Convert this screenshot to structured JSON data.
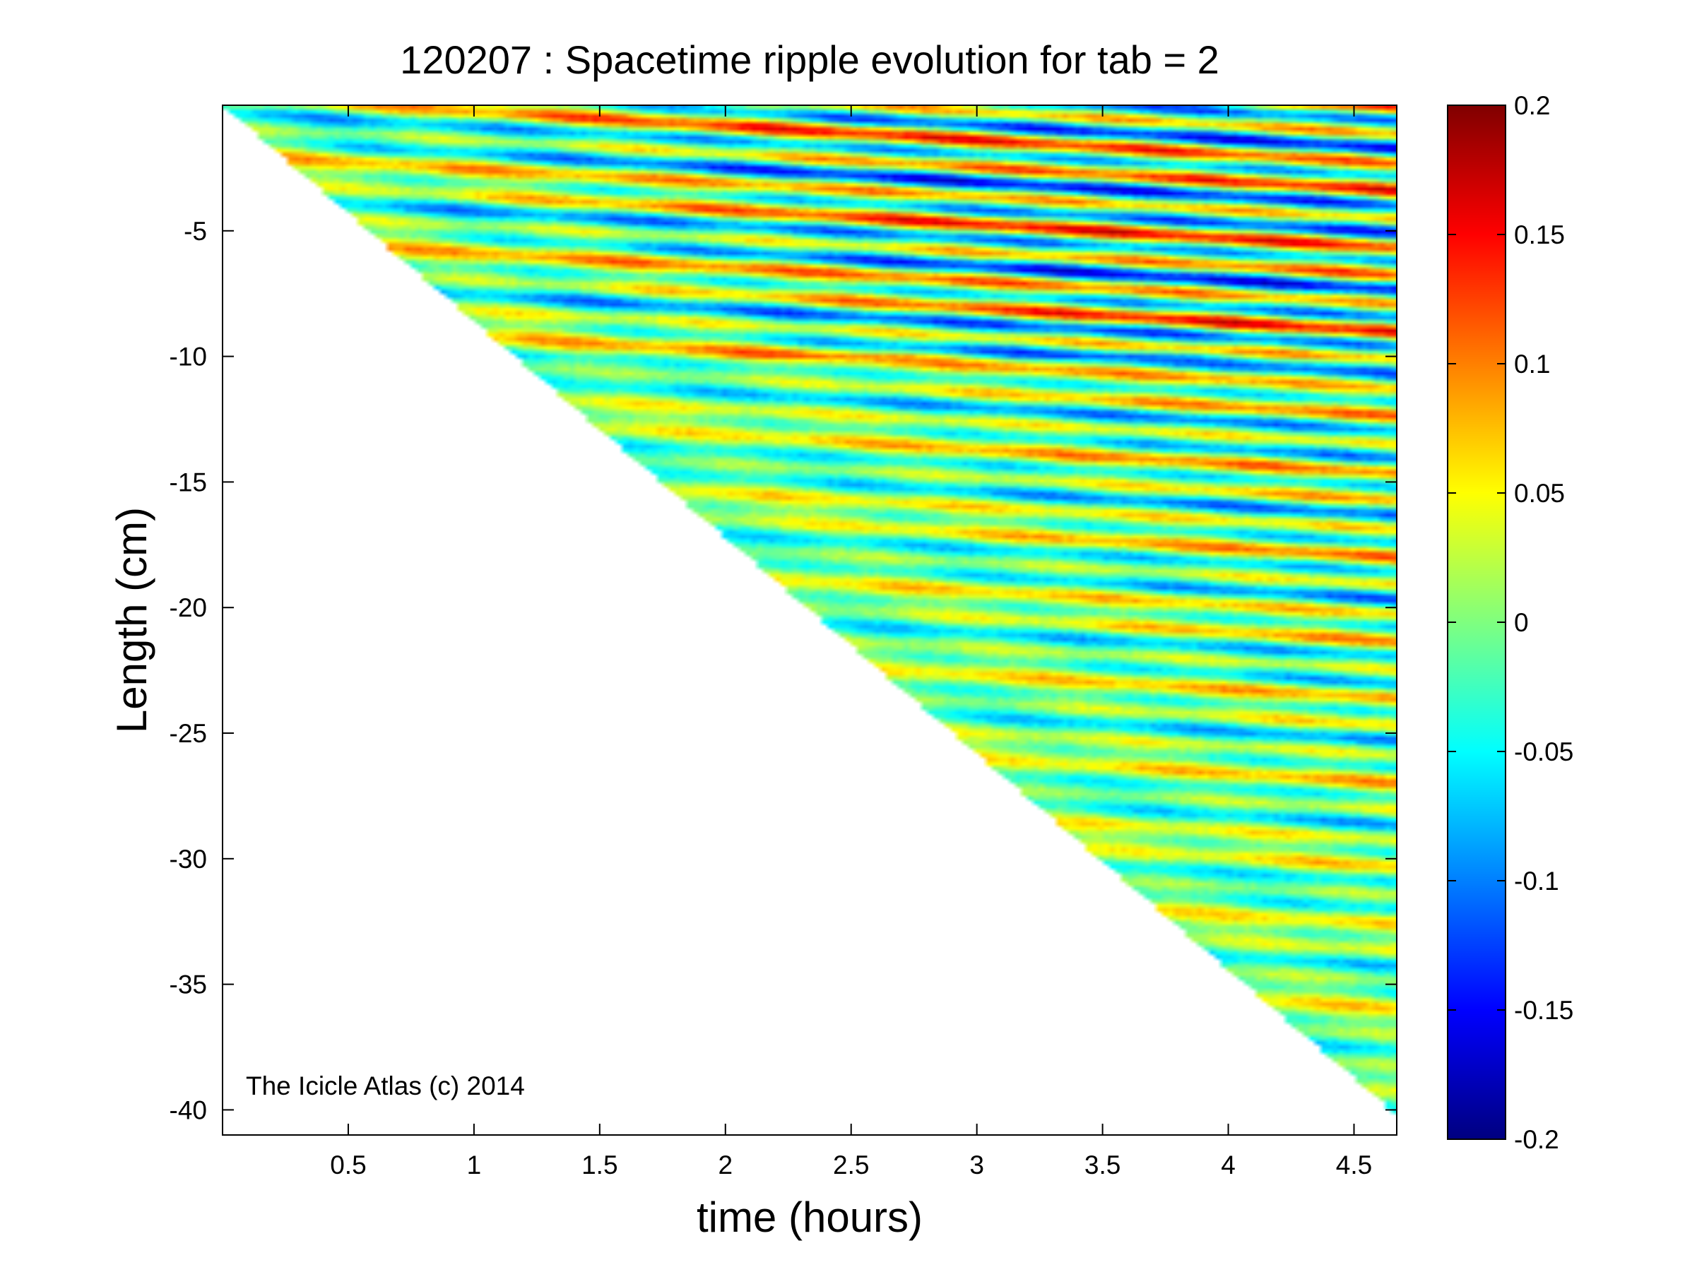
{
  "chart_data": {
    "type": "heatmap",
    "title": "120207 : Spacetime ripple evolution for tab = 2",
    "xlabel": "time (hours)",
    "ylabel": "Length (cm)",
    "xlim": [
      0,
      4.67
    ],
    "ylim": [
      -41,
      0
    ],
    "xticks": [
      0.5,
      1,
      1.5,
      2,
      2.5,
      3,
      3.5,
      4,
      4.5
    ],
    "xtick_labels": [
      "0.5",
      "1",
      "1.5",
      "2",
      "2.5",
      "3",
      "3.5",
      "4",
      "4.5"
    ],
    "yticks": [
      -5,
      -10,
      -15,
      -20,
      -25,
      -30,
      -35,
      -40
    ],
    "ytick_labels": [
      "-5",
      "-10",
      "-15",
      "-20",
      "-25",
      "-30",
      "-35",
      "-40"
    ],
    "colorbar": {
      "colormap": "jet",
      "clim": [
        -0.2,
        0.2
      ],
      "ticks": [
        0.2,
        0.15,
        0.1,
        0.05,
        0,
        -0.05,
        -0.1,
        -0.15,
        -0.2
      ],
      "tick_labels": [
        "0.2",
        "0.15",
        "0.1",
        "0.05",
        "0",
        "-0.05",
        "-0.1",
        "-0.15",
        "-0.2"
      ]
    },
    "data_boundary": {
      "description_source": "lower-left region is blank; data exists above a diagonal edge",
      "edge": [
        [
          0.0,
          0.0
        ],
        [
          4.67,
          -40.2
        ]
      ]
    },
    "grid": false,
    "legend": "none"
  },
  "annotation": "The Icicle Atlas (c) 2014"
}
